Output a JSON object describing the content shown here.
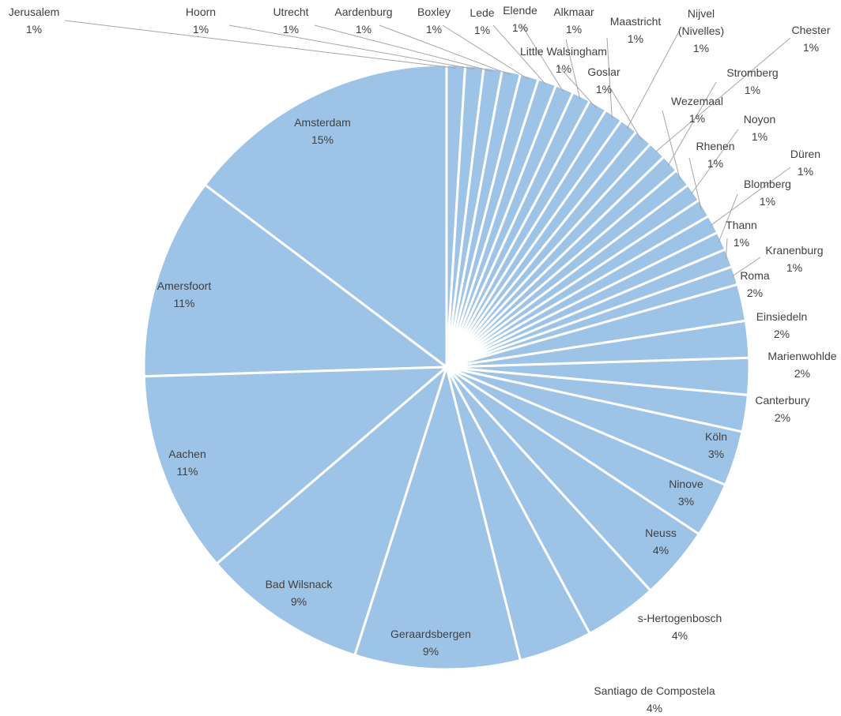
{
  "chart_data": {
    "type": "pie",
    "title": "",
    "colors": {
      "slice_fill": "#9dc3e6",
      "slice_stroke": "#ffffff",
      "leader_line": "#a6a6a6",
      "label_text": "#404040"
    },
    "slices": [
      {
        "name": "Amsterdam",
        "value": 15,
        "label": "15%"
      },
      {
        "name": "Amersfoort",
        "value": 11,
        "label": "11%"
      },
      {
        "name": "Aachen",
        "value": 11,
        "label": "11%"
      },
      {
        "name": "Bad Wilsnack",
        "value": 9,
        "label": "9%"
      },
      {
        "name": "Geraardsbergen",
        "value": 9,
        "label": "9%"
      },
      {
        "name": "Santiago de Compostela",
        "value": 4,
        "label": "4%"
      },
      {
        "name": "s-Hertogenbosch",
        "value": 4,
        "label": "4%"
      },
      {
        "name": "Neuss",
        "value": 4,
        "label": "4%"
      },
      {
        "name": "Ninove",
        "value": 3,
        "label": "3%"
      },
      {
        "name": "Köln",
        "value": 3,
        "label": "3%"
      },
      {
        "name": "Canterbury",
        "value": 2,
        "label": "2%"
      },
      {
        "name": "Marienwohlde",
        "value": 2,
        "label": "2%"
      },
      {
        "name": "Einsiedeln",
        "value": 2,
        "label": "2%"
      },
      {
        "name": "Roma",
        "value": 2,
        "label": "2%"
      },
      {
        "name": "Kranenburg",
        "value": 1,
        "label": "1%"
      },
      {
        "name": "Thann",
        "value": 1,
        "label": "1%"
      },
      {
        "name": "Blomberg",
        "value": 1,
        "label": "1%"
      },
      {
        "name": "Düren",
        "value": 1,
        "label": "1%"
      },
      {
        "name": "Rhenen",
        "value": 1,
        "label": "1%"
      },
      {
        "name": "Noyon",
        "value": 1,
        "label": "1%"
      },
      {
        "name": "Wezemaal",
        "value": 1,
        "label": "1%"
      },
      {
        "name": "Stromberg",
        "value": 1,
        "label": "1%"
      },
      {
        "name": "Chester",
        "value": 1,
        "label": "1%"
      },
      {
        "name": "Goslar",
        "value": 1,
        "label": "1%"
      },
      {
        "name": "Nijvel (Nivelles)",
        "value": 1,
        "label": "1%"
      },
      {
        "name": "Maastricht",
        "value": 1,
        "label": "1%"
      },
      {
        "name": "Little Walsingham",
        "value": 1,
        "label": "1%"
      },
      {
        "name": "Alkmaar",
        "value": 1,
        "label": "1%"
      },
      {
        "name": "Elende",
        "value": 1,
        "label": "1%"
      },
      {
        "name": "Lede",
        "value": 1,
        "label": "1%"
      },
      {
        "name": "Boxley",
        "value": 1,
        "label": "1%"
      },
      {
        "name": "Aardenburg",
        "value": 1,
        "label": "1%"
      },
      {
        "name": "Utrecht",
        "value": 1,
        "label": "1%"
      },
      {
        "name": "Hoorn",
        "value": 1,
        "label": "1%"
      },
      {
        "name": "Jerusalem",
        "value": 1,
        "label": "1%"
      }
    ]
  }
}
